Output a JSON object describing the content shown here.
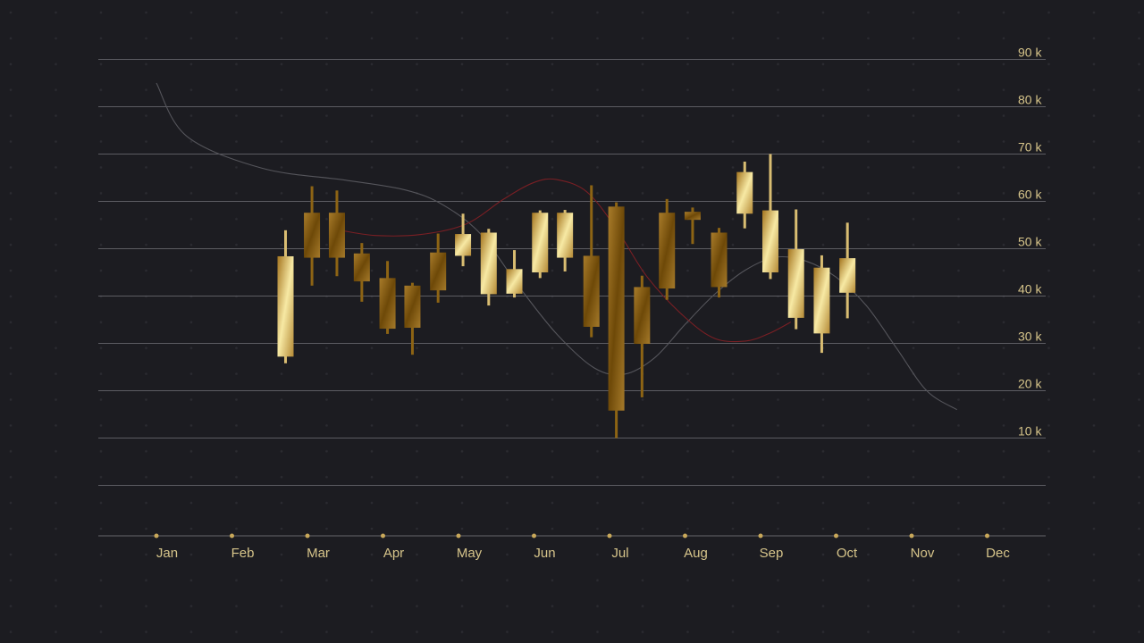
{
  "chart_data": {
    "type": "candlestick",
    "title": "",
    "xlabel": "",
    "ylabel": "",
    "x_categories": [
      "Jan",
      "Feb",
      "Mar",
      "Apr",
      "May",
      "Jun",
      "Jul",
      "Aug",
      "Sep",
      "Oct",
      "Nov",
      "Dec"
    ],
    "y_ticks": [
      {
        "value": 90,
        "label": "90 k"
      },
      {
        "value": 80,
        "label": "80 k"
      },
      {
        "value": 70,
        "label": "70 k"
      },
      {
        "value": 60,
        "label": "60 k"
      },
      {
        "value": 50,
        "label": "50 k"
      },
      {
        "value": 40,
        "label": "40 k"
      },
      {
        "value": 30,
        "label": "30 k"
      },
      {
        "value": 20,
        "label": "20 k"
      },
      {
        "value": 10,
        "label": "10 k"
      }
    ],
    "ylim": [
      -10,
      90
    ],
    "grid": true,
    "candles": [
      {
        "x": 2.71,
        "open": 48.4,
        "close": 27.2,
        "high": 53.9,
        "low": 25.8,
        "tone": "light"
      },
      {
        "x": 3.06,
        "open": 57.6,
        "close": 48.1,
        "high": 63.2,
        "low": 42.2,
        "tone": "dark"
      },
      {
        "x": 3.39,
        "open": 57.6,
        "close": 48.1,
        "high": 62.3,
        "low": 44.2,
        "tone": "dark"
      },
      {
        "x": 3.72,
        "open": 49.0,
        "close": 43.1,
        "high": 51.2,
        "low": 38.8,
        "tone": "dark"
      },
      {
        "x": 4.06,
        "open": 43.8,
        "close": 33.1,
        "high": 47.4,
        "low": 32.0,
        "tone": "dark"
      },
      {
        "x": 4.39,
        "open": 42.2,
        "close": 33.3,
        "high": 42.8,
        "low": 27.6,
        "tone": "dark"
      },
      {
        "x": 4.73,
        "open": 49.2,
        "close": 41.2,
        "high": 53.2,
        "low": 38.6,
        "tone": "dark"
      },
      {
        "x": 5.06,
        "open": 53.1,
        "close": 48.5,
        "high": 57.4,
        "low": 46.3,
        "tone": "light"
      },
      {
        "x": 5.4,
        "open": 53.4,
        "close": 40.4,
        "high": 54.2,
        "low": 38.0,
        "tone": "light"
      },
      {
        "x": 5.74,
        "open": 45.7,
        "close": 40.5,
        "high": 49.7,
        "low": 39.7,
        "tone": "light"
      },
      {
        "x": 6.08,
        "open": 57.6,
        "close": 45.0,
        "high": 58.1,
        "low": 43.8,
        "tone": "light"
      },
      {
        "x": 6.41,
        "open": 57.6,
        "close": 48.1,
        "high": 58.2,
        "low": 45.2,
        "tone": "light"
      },
      {
        "x": 6.76,
        "open": 48.5,
        "close": 33.5,
        "high": 63.4,
        "low": 31.3,
        "tone": "dark"
      },
      {
        "x": 7.09,
        "open": 58.9,
        "close": 15.8,
        "high": 59.8,
        "low": 10.0,
        "tone": "dark"
      },
      {
        "x": 7.43,
        "open": 41.9,
        "close": 29.9,
        "high": 44.3,
        "low": 18.6,
        "tone": "dark"
      },
      {
        "x": 7.76,
        "open": 57.6,
        "close": 41.6,
        "high": 60.5,
        "low": 39.2,
        "tone": "dark"
      },
      {
        "x": 8.1,
        "open": 57.8,
        "close": 56.1,
        "high": 58.7,
        "low": 51.0,
        "tone": "dark"
      },
      {
        "x": 8.45,
        "open": 53.4,
        "close": 41.9,
        "high": 54.4,
        "low": 39.7,
        "tone": "dark"
      },
      {
        "x": 8.79,
        "open": 66.2,
        "close": 57.4,
        "high": 68.4,
        "low": 54.3,
        "tone": "light"
      },
      {
        "x": 9.13,
        "open": 58.1,
        "close": 45.0,
        "high": 70.0,
        "low": 43.6,
        "tone": "light"
      },
      {
        "x": 9.47,
        "open": 49.9,
        "close": 35.4,
        "high": 58.3,
        "low": 33.0,
        "tone": "light"
      },
      {
        "x": 9.81,
        "open": 46.0,
        "close": 32.1,
        "high": 48.6,
        "low": 28.0,
        "tone": "light"
      },
      {
        "x": 10.15,
        "open": 48.0,
        "close": 40.7,
        "high": 55.5,
        "low": 35.3,
        "tone": "light"
      }
    ],
    "overlay_lines": [
      {
        "style": "thin-grey",
        "points": [
          [
            1.0,
            85.0
          ],
          [
            1.4,
            73.8
          ],
          [
            2.4,
            67.0
          ],
          [
            3.5,
            64.5
          ],
          [
            4.3,
            62.4
          ],
          [
            4.8,
            59.2
          ],
          [
            5.3,
            53.0
          ],
          [
            5.8,
            42.0
          ],
          [
            6.3,
            32.0
          ],
          [
            6.8,
            24.8
          ],
          [
            7.2,
            23.5
          ],
          [
            7.6,
            27.0
          ],
          [
            8.0,
            34.0
          ],
          [
            8.4,
            40.5
          ],
          [
            8.8,
            45.5
          ],
          [
            9.2,
            48.2
          ],
          [
            9.6,
            47.4
          ],
          [
            10.0,
            44.0
          ],
          [
            10.4,
            38.0
          ],
          [
            10.8,
            29.0
          ],
          [
            11.2,
            20.0
          ],
          [
            11.6,
            16.0
          ]
        ]
      },
      {
        "style": "thin-red",
        "points": [
          [
            3.4,
            54.0
          ],
          [
            3.9,
            52.8
          ],
          [
            4.5,
            53.0
          ],
          [
            5.1,
            55.2
          ],
          [
            5.6,
            60.5
          ],
          [
            6.0,
            64.0
          ],
          [
            6.3,
            64.6
          ],
          [
            6.7,
            62.0
          ],
          [
            7.1,
            54.0
          ],
          [
            7.5,
            44.0
          ],
          [
            8.0,
            35.5
          ],
          [
            8.4,
            31.0
          ],
          [
            8.8,
            30.5
          ],
          [
            9.1,
            32.0
          ],
          [
            9.4,
            34.5
          ]
        ]
      }
    ]
  }
}
